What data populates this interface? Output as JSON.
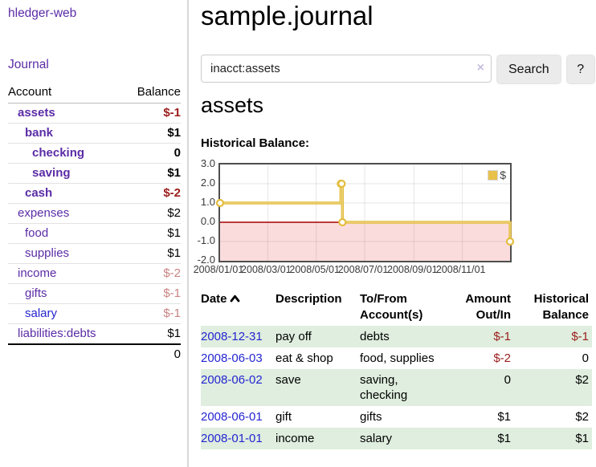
{
  "sidebar": {
    "app_title": "hledger-web",
    "journal_link": "Journal",
    "accounts_table": {
      "headers": {
        "account": "Account",
        "balance": "Balance"
      },
      "rows": [
        {
          "name": "assets",
          "balance": "$-1",
          "level": 0,
          "bold": true,
          "balance_color": "negative-strong",
          "link_color": "purple"
        },
        {
          "name": "bank",
          "balance": "$1",
          "level": 1,
          "bold": true,
          "balance_color": "normal",
          "link_color": "purple"
        },
        {
          "name": "checking",
          "balance": "0",
          "level": 2,
          "bold": true,
          "balance_color": "normal",
          "link_color": "purple"
        },
        {
          "name": "saving",
          "balance": "$1",
          "level": 2,
          "bold": true,
          "balance_color": "normal",
          "link_color": "purple"
        },
        {
          "name": "cash",
          "balance": "$-2",
          "level": 1,
          "bold": true,
          "balance_color": "negative-strong",
          "link_color": "purple"
        },
        {
          "name": "expenses",
          "balance": "$2",
          "level": 0,
          "bold": false,
          "balance_color": "normal",
          "link_color": "purple"
        },
        {
          "name": "food",
          "balance": "$1",
          "level": 1,
          "bold": false,
          "balance_color": "normal",
          "link_color": "purple"
        },
        {
          "name": "supplies",
          "balance": "$1",
          "level": 1,
          "bold": false,
          "balance_color": "normal",
          "link_color": "purple"
        },
        {
          "name": "income",
          "balance": "$-2",
          "level": 0,
          "bold": false,
          "balance_color": "negative-dim",
          "link_color": "purple"
        },
        {
          "name": "gifts",
          "balance": "$-1",
          "level": 1,
          "bold": false,
          "balance_color": "negative-dim",
          "link_color": "purple"
        },
        {
          "name": "salary",
          "balance": "$-1",
          "level": 1,
          "bold": false,
          "balance_color": "negative-dim",
          "link_color": "blue"
        },
        {
          "name": "liabilities:debts",
          "balance": "$1",
          "level": 0,
          "bold": false,
          "balance_color": "normal",
          "link_color": "purple"
        }
      ],
      "total": "0"
    }
  },
  "main": {
    "title": "sample.journal",
    "search": {
      "value": "inacct:assets",
      "clear_icon": "×",
      "button": "Search",
      "help_button": "?"
    },
    "account_heading": "assets",
    "chart_label": "Historical Balance:"
  },
  "chart_data": {
    "type": "line",
    "title": "Historical Balance",
    "step": true,
    "legend": [
      {
        "label": "$",
        "color": "#e8c14a"
      }
    ],
    "legend_position": "top-right",
    "points": [
      {
        "date": "2008-01-01",
        "value": 1
      },
      {
        "date": "2008-06-01",
        "value": 2
      },
      {
        "date": "2008-06-02",
        "value": 2
      },
      {
        "date": "2008-06-03",
        "value": 0
      },
      {
        "date": "2008-12-31",
        "value": -1
      }
    ],
    "x_ticks": [
      "2008/01/01",
      "2008/03/01",
      "2008/05/01",
      "2008/07/01",
      "2008/09/01",
      "2008/11/01"
    ],
    "y_ticks": [
      3.0,
      2.0,
      1.0,
      0.0,
      -1.0,
      -2.0
    ],
    "ylim": [
      -2,
      3
    ],
    "x_domain": [
      "2008-01-01",
      "2008-12-31"
    ],
    "grid": true,
    "line_color": "#e4bd3f",
    "zero_line_color": "#a40000",
    "negative_region_color": "#fbdcdc"
  },
  "register": {
    "headers": [
      "Date",
      "Description",
      "To/From Account(s)",
      "Amount Out/In",
      "Historical Balance"
    ],
    "sort_icon": "chevron-up",
    "rows": [
      {
        "date": "2008-12-31",
        "description": "pay off",
        "accounts": "debts",
        "amount": "$-1",
        "balance": "$-1"
      },
      {
        "date": "2008-06-03",
        "description": "eat & shop",
        "accounts": "food, supplies",
        "amount": "$-2",
        "balance": "0"
      },
      {
        "date": "2008-06-02",
        "description": "save",
        "accounts": "saving, checking",
        "amount": "0",
        "balance": "$2"
      },
      {
        "date": "2008-06-01",
        "description": "gift",
        "accounts": "gifts",
        "amount": "$1",
        "balance": "$2"
      },
      {
        "date": "2008-01-01",
        "description": "income",
        "accounts": "salary",
        "amount": "$1",
        "balance": "$1"
      }
    ]
  }
}
